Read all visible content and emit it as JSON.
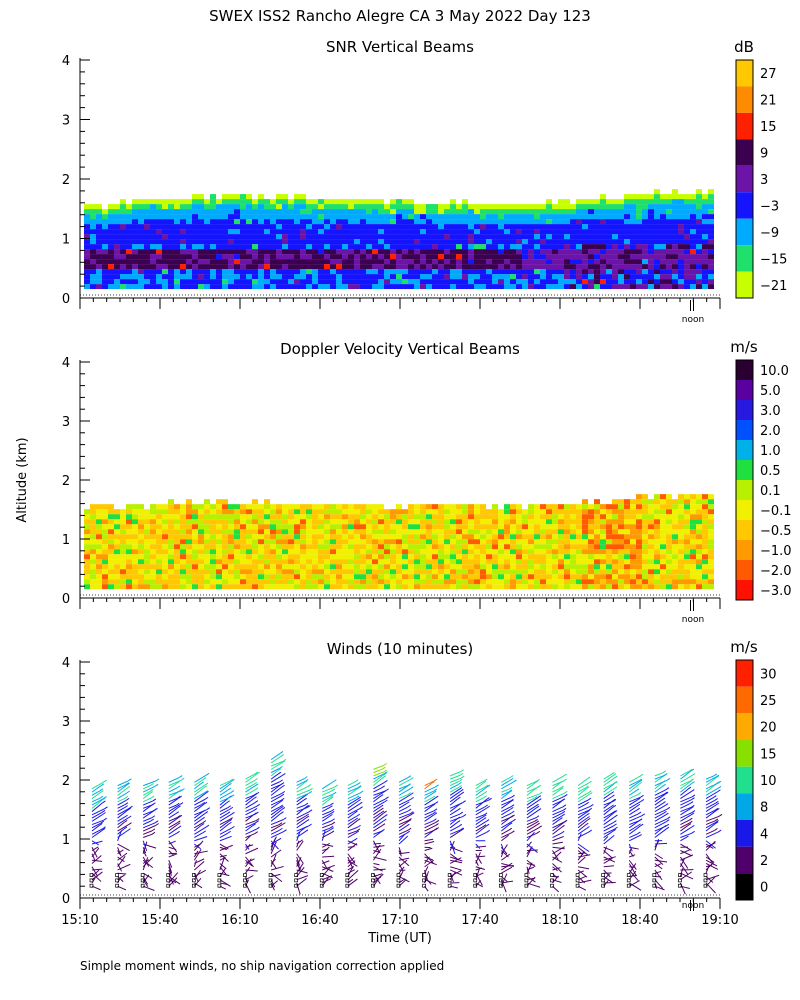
{
  "figure": {
    "title": "SWEX ISS2 Rancho Alegre CA   3 May 2022 Day 123",
    "ylabel": "Altitude (km)",
    "xlabel": "Time (UT)",
    "footnote": "Simple moment winds, no ship navigation correction applied",
    "noon_label": "noon"
  },
  "chart_data": [
    {
      "type": "heatmap",
      "title": "SNR Vertical Beams",
      "ylim": [
        0,
        4
      ],
      "yticks": [
        0,
        1,
        2,
        3,
        4
      ],
      "xlim": [
        "15:10",
        "19:10"
      ],
      "colorbar": {
        "unit": "dB",
        "labels": [
          "27",
          "21",
          "15",
          "9",
          "3",
          "−3",
          "−9",
          "−15",
          "−21"
        ],
        "colors": [
          "#ffc800",
          "#ff8c00",
          "#ff2000",
          "#3c0050",
          "#6c14a8",
          "#1414ff",
          "#00aaff",
          "#1fe06a",
          "#c8ff00"
        ]
      },
      "data_top_km": [
        1.5,
        1.55,
        1.6,
        1.65,
        1.68,
        1.7,
        1.68,
        1.65,
        1.62,
        1.6,
        1.58,
        1.55,
        1.52,
        1.55,
        1.6,
        1.65,
        1.7,
        1.75,
        1.72
      ],
      "layers": [
        {
          "name": "band-low",
          "value": "3",
          "lower_km": 0.45,
          "upper_km": 0.75
        },
        {
          "name": "band-mid",
          "value": "-3",
          "lower_km": 0.9,
          "upper_km": 1.2
        }
      ]
    },
    {
      "type": "heatmap",
      "title": "Doppler Velocity Vertical Beams",
      "ylim": [
        0,
        4
      ],
      "yticks": [
        0,
        1,
        2,
        3,
        4
      ],
      "xlim": [
        "15:10",
        "19:10"
      ],
      "colorbar": {
        "unit": "m/s",
        "labels": [
          "10.0",
          "5.0",
          "3.0",
          "2.0",
          "1.0",
          "0.5",
          "0.1",
          "−0.1",
          "−0.5",
          "−1.0",
          "−2.0",
          "−3.0"
        ],
        "colors": [
          "#2a0030",
          "#5a00a0",
          "#2818e0",
          "#0050ff",
          "#00b0e8",
          "#20e040",
          "#b8f000",
          "#f0f000",
          "#ffc800",
          "#ff9a00",
          "#ff5a00",
          "#ff1000"
        ]
      },
      "data_top_km": [
        1.5,
        1.52,
        1.55,
        1.58,
        1.6,
        1.58,
        1.55,
        1.55,
        1.52,
        1.5,
        1.52,
        1.55,
        1.5,
        1.52,
        1.55,
        1.6,
        1.65,
        1.7,
        1.68
      ]
    },
    {
      "type": "scatter",
      "title": "Winds (10 minutes)",
      "ylim": [
        0,
        4
      ],
      "yticks": [
        0,
        1,
        2,
        3,
        4
      ],
      "xlim": [
        "15:10",
        "19:10"
      ],
      "xticks": [
        "15:10",
        "15:40",
        "16:10",
        "16:40",
        "17:10",
        "17:40",
        "18:10",
        "18:40",
        "19:10"
      ],
      "colorbar": {
        "unit": "m/s",
        "labels": [
          "30",
          "25",
          "20",
          "15",
          "10",
          "8",
          "4",
          "2",
          "0"
        ],
        "colors": [
          "#ff2000",
          "#ff6a00",
          "#ffaa00",
          "#88e000",
          "#20e090",
          "#00a8e8",
          "#1818e8",
          "#50006a",
          "#000000"
        ]
      },
      "profile_top_km": [
        1.85,
        1.95,
        1.95,
        2.0,
        2.0,
        1.95,
        2.05,
        2.4,
        2.0,
        1.9,
        1.95,
        2.2,
        2.0,
        1.95,
        2.1,
        1.95,
        2.0,
        1.95,
        2.0,
        1.95,
        2.05,
        2.0,
        2.1,
        2.1,
        2.05
      ]
    }
  ]
}
